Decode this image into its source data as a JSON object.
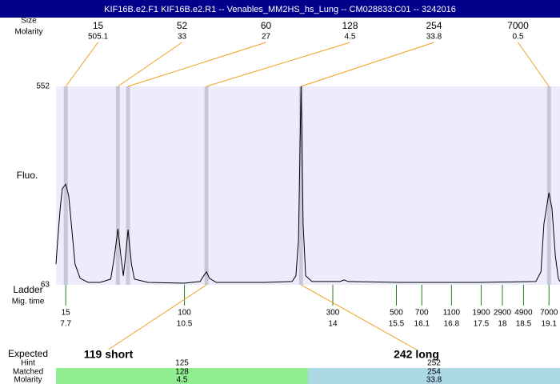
{
  "chart_data": {
    "type": "line",
    "title": "KIF16B.e2.F1  KIF16B.e2.R1 -- Venables_MM2HS_hs_Lung -- CM028833:C01 -- 3242016",
    "y_label": "Fluo.",
    "peak_header": [
      "Size",
      "Molarity"
    ],
    "ladder_header": [
      "Ladder",
      "Mig. time"
    ],
    "expected_header": [
      "Expected",
      "Hint",
      "Matched",
      "Molarity"
    ],
    "xlim": [
      7.47,
      19.36
    ],
    "ylim": [
      63,
      552
    ],
    "yticks": [
      63,
      552
    ],
    "color": "#000000",
    "x": [
      7.47,
      7.51,
      7.57,
      7.62,
      7.7,
      7.77,
      7.85,
      7.92,
      8.04,
      8.23,
      8.51,
      8.76,
      8.85,
      8.93,
      9.0,
      9.06,
      9.1,
      9.17,
      9.25,
      9.32,
      9.64,
      10.49,
      10.87,
      10.94,
      11.02,
      11.09,
      11.25,
      12.38,
      13.04,
      13.13,
      13.19,
      13.25,
      13.3,
      13.36,
      13.51,
      14.17,
      14.27,
      14.36,
      15.59,
      17.47,
      18.79,
      18.91,
      18.98,
      19.1,
      19.17,
      19.25,
      19.32,
      19.36
    ],
    "values": [
      114,
      173,
      252,
      300,
      311,
      282,
      193,
      114,
      79,
      69,
      69,
      77,
      134,
      201,
      134,
      85,
      124,
      199,
      114,
      77,
      69,
      67,
      71,
      83,
      95,
      79,
      69,
      69,
      71,
      85,
      173,
      552,
      213,
      85,
      71,
      71,
      75,
      71,
      69,
      69,
      71,
      95,
      213,
      290,
      252,
      134,
      79,
      71
    ],
    "peaks": [
      {
        "size": 15,
        "molarity": 505.1,
        "time": 7.7
      },
      {
        "size": 52,
        "molarity": 33,
        "time": 8.93
      },
      {
        "size": 60,
        "molarity": 27,
        "time": 9.17
      },
      {
        "size": 128,
        "molarity": 4.5,
        "time": 11.02
      },
      {
        "size": 254,
        "molarity": 33.8,
        "time": 13.25
      },
      {
        "size": 7000,
        "molarity": 0.5,
        "time": 19.1
      }
    ],
    "ladder": {
      "sizes": [
        15,
        100,
        300,
        500,
        700,
        1100,
        1900,
        2900,
        4900,
        7000
      ],
      "times": [
        7.7,
        10.5,
        14,
        15.5,
        16.1,
        16.8,
        17.5,
        18,
        18.5,
        19.1
      ]
    },
    "expected": [
      {
        "label": "119 short",
        "time": 11.02,
        "hint": 125,
        "matched": 128,
        "molarity": 4.5,
        "color": "#90ee90"
      },
      {
        "label": "242 long",
        "time": 13.25,
        "hint": 252,
        "matched": 254,
        "molarity": 33.8,
        "color": "#add8e6"
      }
    ]
  }
}
